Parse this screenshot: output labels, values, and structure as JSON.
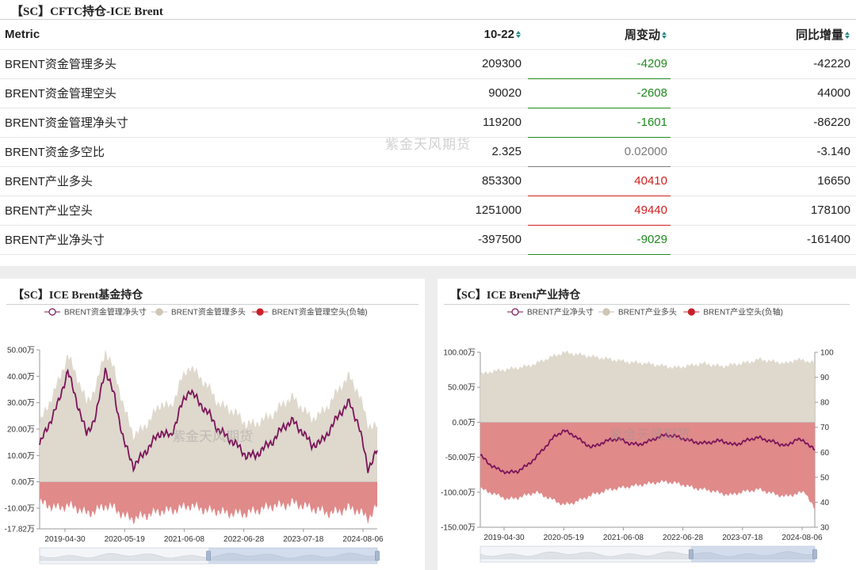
{
  "table_panel": {
    "title": "【SC】CFTC持仓-ICE Brent",
    "columns": [
      "Metric",
      "10-22",
      "周变动",
      "同比增量"
    ],
    "rows": [
      {
        "metric": "BRENT资金管理多头",
        "value": "209300",
        "change": "-4209",
        "yoy": "-42220",
        "change_color": "#1e8a1e"
      },
      {
        "metric": "BRENT资金管理空头",
        "value": "90020",
        "change": "-2608",
        "yoy": "44000",
        "change_color": "#1e8a1e"
      },
      {
        "metric": "BRENT资金管理净头寸",
        "value": "119200",
        "change": "-1601",
        "yoy": "-86220",
        "change_color": "#1e8a1e"
      },
      {
        "metric": "BRENT资金多空比",
        "value": "2.325",
        "change": "0.02000",
        "yoy": "-3.140",
        "change_color": "#7a7a7a"
      },
      {
        "metric": "BRENT产业多头",
        "value": "853300",
        "change": "40410",
        "yoy": "16650",
        "change_color": "#d11f1f"
      },
      {
        "metric": "BRENT产业空头",
        "value": "1251000",
        "change": "49440",
        "yoy": "178100",
        "change_color": "#d11f1f"
      },
      {
        "metric": "BRENT产业净头寸",
        "value": "-397500",
        "change": "-9029",
        "yoy": "-161400",
        "change_color": "#1e8a1e"
      }
    ],
    "watermark": "紫金天风期货",
    "sort_icon": "sort-arrows-icon"
  },
  "colors": {
    "net_line": "#7b1459",
    "long_area": "#ded8cd",
    "short_area": "#e08a8a",
    "short_dot": "#c8202a",
    "positive": "#d11f1f",
    "negative": "#1e8a1e"
  },
  "chart_data": [
    {
      "type": "area",
      "title": "【SC】ICE Brent基金持仓",
      "legend": [
        "BRENT资金管理净头寸",
        "BRENT资金管理多头",
        "BRENT资金管理空头(负轴)"
      ],
      "legend_position": "top",
      "y_ticks": [
        "50.00万",
        "40.00万",
        "30.00万",
        "20.00万",
        "10.00万",
        "0.00万",
        "-10.00万",
        "-17.82万"
      ],
      "ylim": [
        -17.82,
        50
      ],
      "y_unit": "万",
      "x_ticks": [
        "2019-04-30",
        "2020-05-19",
        "2021-06-08",
        "2022-06-28",
        "2023-07-18",
        "2024-08-06"
      ],
      "grid": false,
      "watermark": "紫金天风期货",
      "series": [
        {
          "name": "BRENT资金管理多头",
          "values": [
            22,
            30,
            38,
            48,
            40,
            30,
            36,
            50,
            42,
            28,
            18,
            20,
            25,
            30,
            28,
            38,
            44,
            40,
            36,
            30,
            28,
            26,
            22,
            22,
            24,
            26,
            30,
            32,
            28,
            24,
            26,
            30,
            36,
            40,
            34,
            22,
            20.9
          ]
        },
        {
          "name": "BRENT资金管理空头(负轴)",
          "values": [
            -8,
            -9,
            -10,
            -9,
            -10,
            -12,
            -11,
            -9,
            -10,
            -13,
            -14,
            -13,
            -12,
            -11,
            -11,
            -10,
            -9,
            -10,
            -11,
            -11,
            -12,
            -12,
            -12,
            -11,
            -10,
            -9,
            -9,
            -8,
            -9,
            -10,
            -11,
            -12,
            -11,
            -10,
            -11,
            -14,
            -9
          ]
        },
        {
          "name": "BRENT资金管理净头寸",
          "values": [
            14,
            22,
            30,
            42,
            30,
            18,
            25,
            43,
            32,
            15,
            6,
            10,
            15,
            19,
            17,
            28,
            35,
            30,
            26,
            20,
            17,
            14,
            10,
            10,
            13,
            16,
            21,
            23,
            19,
            14,
            15,
            20,
            26,
            30,
            22,
            5,
            11.9
          ]
        }
      ]
    },
    {
      "type": "area",
      "title": "【SC】ICE Brent产业持仓",
      "legend": [
        "BRENT产业净头寸",
        "BRENT产业多头",
        "BRENT产业空头(负轴)"
      ],
      "legend_position": "top",
      "y_ticks": [
        "100.00万",
        "50.00万",
        "0.00万",
        "-50.00万",
        "-100.00万",
        "-150.00万"
      ],
      "ylim": [
        -150,
        100
      ],
      "y_unit": "万",
      "y2_ticks": [
        "100",
        "90",
        "80",
        "70",
        "60",
        "50",
        "40",
        "30"
      ],
      "y2lim": [
        30,
        100
      ],
      "x_ticks": [
        "2019-04-30",
        "2020-05-19",
        "2021-06-08",
        "2022-06-28",
        "2023-07-18",
        "2024-08-06"
      ],
      "grid": false,
      "watermark": "紫金天风期货",
      "series": [
        {
          "name": "BRENT产业多头",
          "values": [
            68,
            72,
            74,
            76,
            78,
            80,
            84,
            90,
            95,
            100,
            98,
            96,
            94,
            92,
            90,
            88,
            86,
            85,
            84,
            82,
            80,
            78,
            80,
            82,
            84,
            82,
            80,
            82,
            84,
            86,
            90,
            88,
            86,
            84,
            90,
            88,
            85.3
          ]
        },
        {
          "name": "BRENT产业空头(负轴)",
          "values": [
            -95,
            -100,
            -105,
            -110,
            -108,
            -104,
            -100,
            -106,
            -112,
            -118,
            -115,
            -110,
            -104,
            -100,
            -96,
            -94,
            -92,
            -90,
            -88,
            -86,
            -85,
            -87,
            -90,
            -94,
            -96,
            -98,
            -102,
            -104,
            -100,
            -98,
            -96,
            -100,
            -104,
            -106,
            -102,
            -100,
            -125.1
          ]
        },
        {
          "name": "BRENT产业净头寸",
          "values": [
            -47,
            -60,
            -68,
            -72,
            -70,
            -62,
            -50,
            -35,
            -20,
            -12,
            -18,
            -28,
            -36,
            -30,
            -25,
            -24,
            -30,
            -32,
            -28,
            -22,
            -18,
            -20,
            -24,
            -28,
            -30,
            -28,
            -26,
            -32,
            -30,
            -24,
            -22,
            -26,
            -30,
            -34,
            -24,
            -28,
            -39.8
          ]
        }
      ]
    }
  ]
}
